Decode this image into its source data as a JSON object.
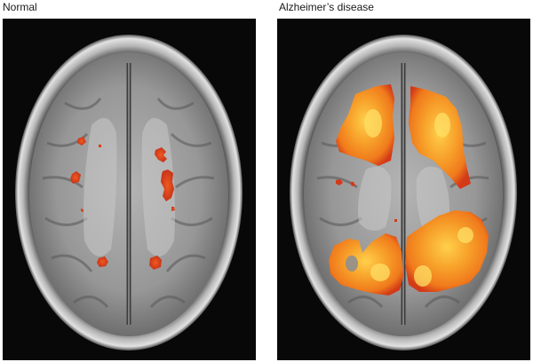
{
  "panels": [
    {
      "label": "Normal",
      "activation": "sparse"
    },
    {
      "label": "Alzheimer’s disease",
      "activation": "widespread"
    }
  ],
  "colors": {
    "background": "#080808",
    "activation_core": "#ffd04a",
    "activation_mid": "#f07a1c",
    "activation_edge": "#d33a18"
  }
}
